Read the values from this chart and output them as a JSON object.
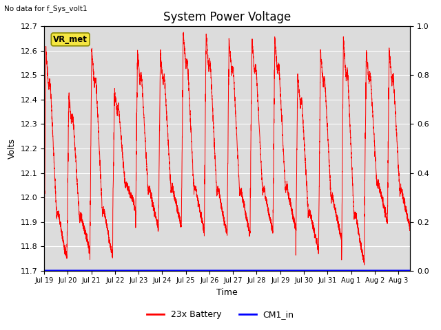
{
  "title": "System Power Voltage",
  "xlabel": "Time",
  "ylabel": "Volts",
  "no_data_text": "No data for f_Sys_volt1",
  "vr_met_label": "VR_met",
  "ylim_left": [
    11.7,
    12.7
  ],
  "ylim_right": [
    0.0,
    1.0
  ],
  "yticks_left": [
    11.7,
    11.8,
    11.9,
    12.0,
    12.1,
    12.2,
    12.3,
    12.4,
    12.5,
    12.6,
    12.7
  ],
  "yticks_right": [
    0.0,
    0.2,
    0.4,
    0.6,
    0.8,
    1.0
  ],
  "background_color": "#dcdcdc",
  "line_color_battery": "red",
  "line_color_cm1": "blue",
  "legend_battery": "23x Battery",
  "legend_cm1": "CM1_in",
  "title_fontsize": 12,
  "label_fontsize": 9,
  "tick_fontsize": 8,
  "figwidth": 6.4,
  "figheight": 4.8,
  "dpi": 100
}
